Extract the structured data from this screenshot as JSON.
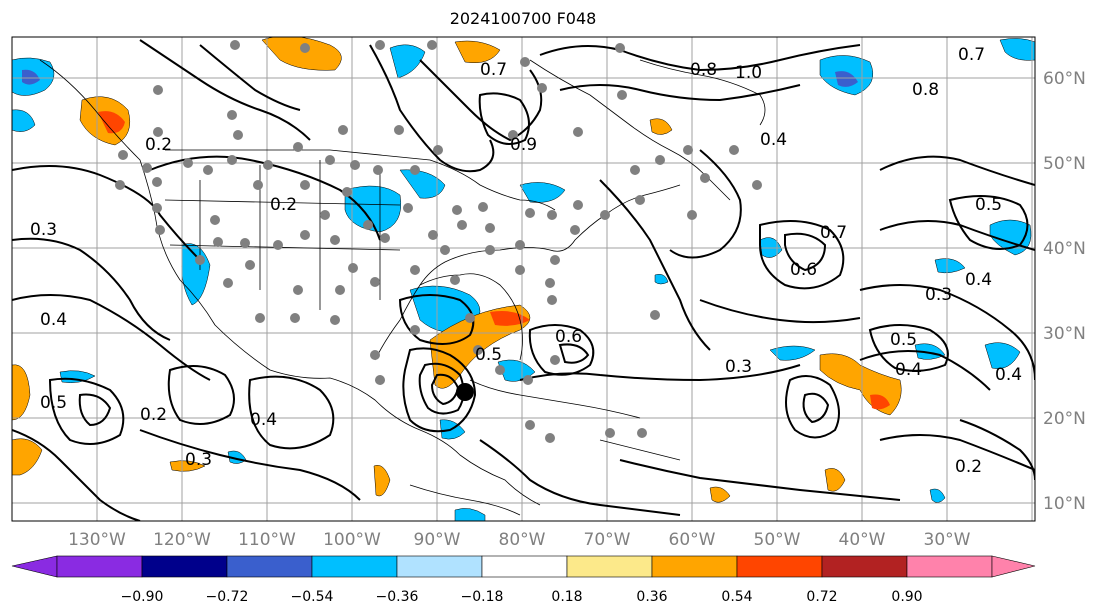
{
  "title": "2024100700 F048",
  "map": {
    "lat_labels": [
      "60°N",
      "50°N",
      "40°N",
      "30°N",
      "20°N",
      "10°N"
    ],
    "lon_labels": [
      "130°W",
      "120°W",
      "110°W",
      "100°W",
      "90°W",
      "80°W",
      "70°W",
      "60°W",
      "50°W",
      "40°W",
      "30°W"
    ],
    "contour_labels": [
      "0.8",
      "1.0",
      "0.7",
      "0.8",
      "0.9",
      "0.7",
      "0.3",
      "0.4",
      "0.5",
      "0.2",
      "0.3",
      "0.4",
      "0.2",
      "0.5",
      "0.6",
      "0.7",
      "0.6",
      "0.4",
      "0.4",
      "0.5",
      "0.3",
      "0.2",
      "0.3",
      "0.4",
      "0.5",
      "0.4",
      "0.2"
    ],
    "colors": {
      "land_line": "#000000",
      "grid": "#a0a0a0",
      "station_dot": "#808080"
    }
  },
  "colorbar": {
    "ticks": [
      "−0.90",
      "−0.72",
      "−0.54",
      "−0.36",
      "−0.18",
      "0.18",
      "0.36",
      "0.54",
      "0.72",
      "0.90"
    ],
    "colors": [
      "#8a2be2",
      "#00008b",
      "#3a5fcd",
      "#00bfff",
      "#b0e2ff",
      "#ffffff",
      "#fce98a",
      "#ffa500",
      "#ff4500",
      "#b22222",
      "#ff82ab"
    ]
  }
}
